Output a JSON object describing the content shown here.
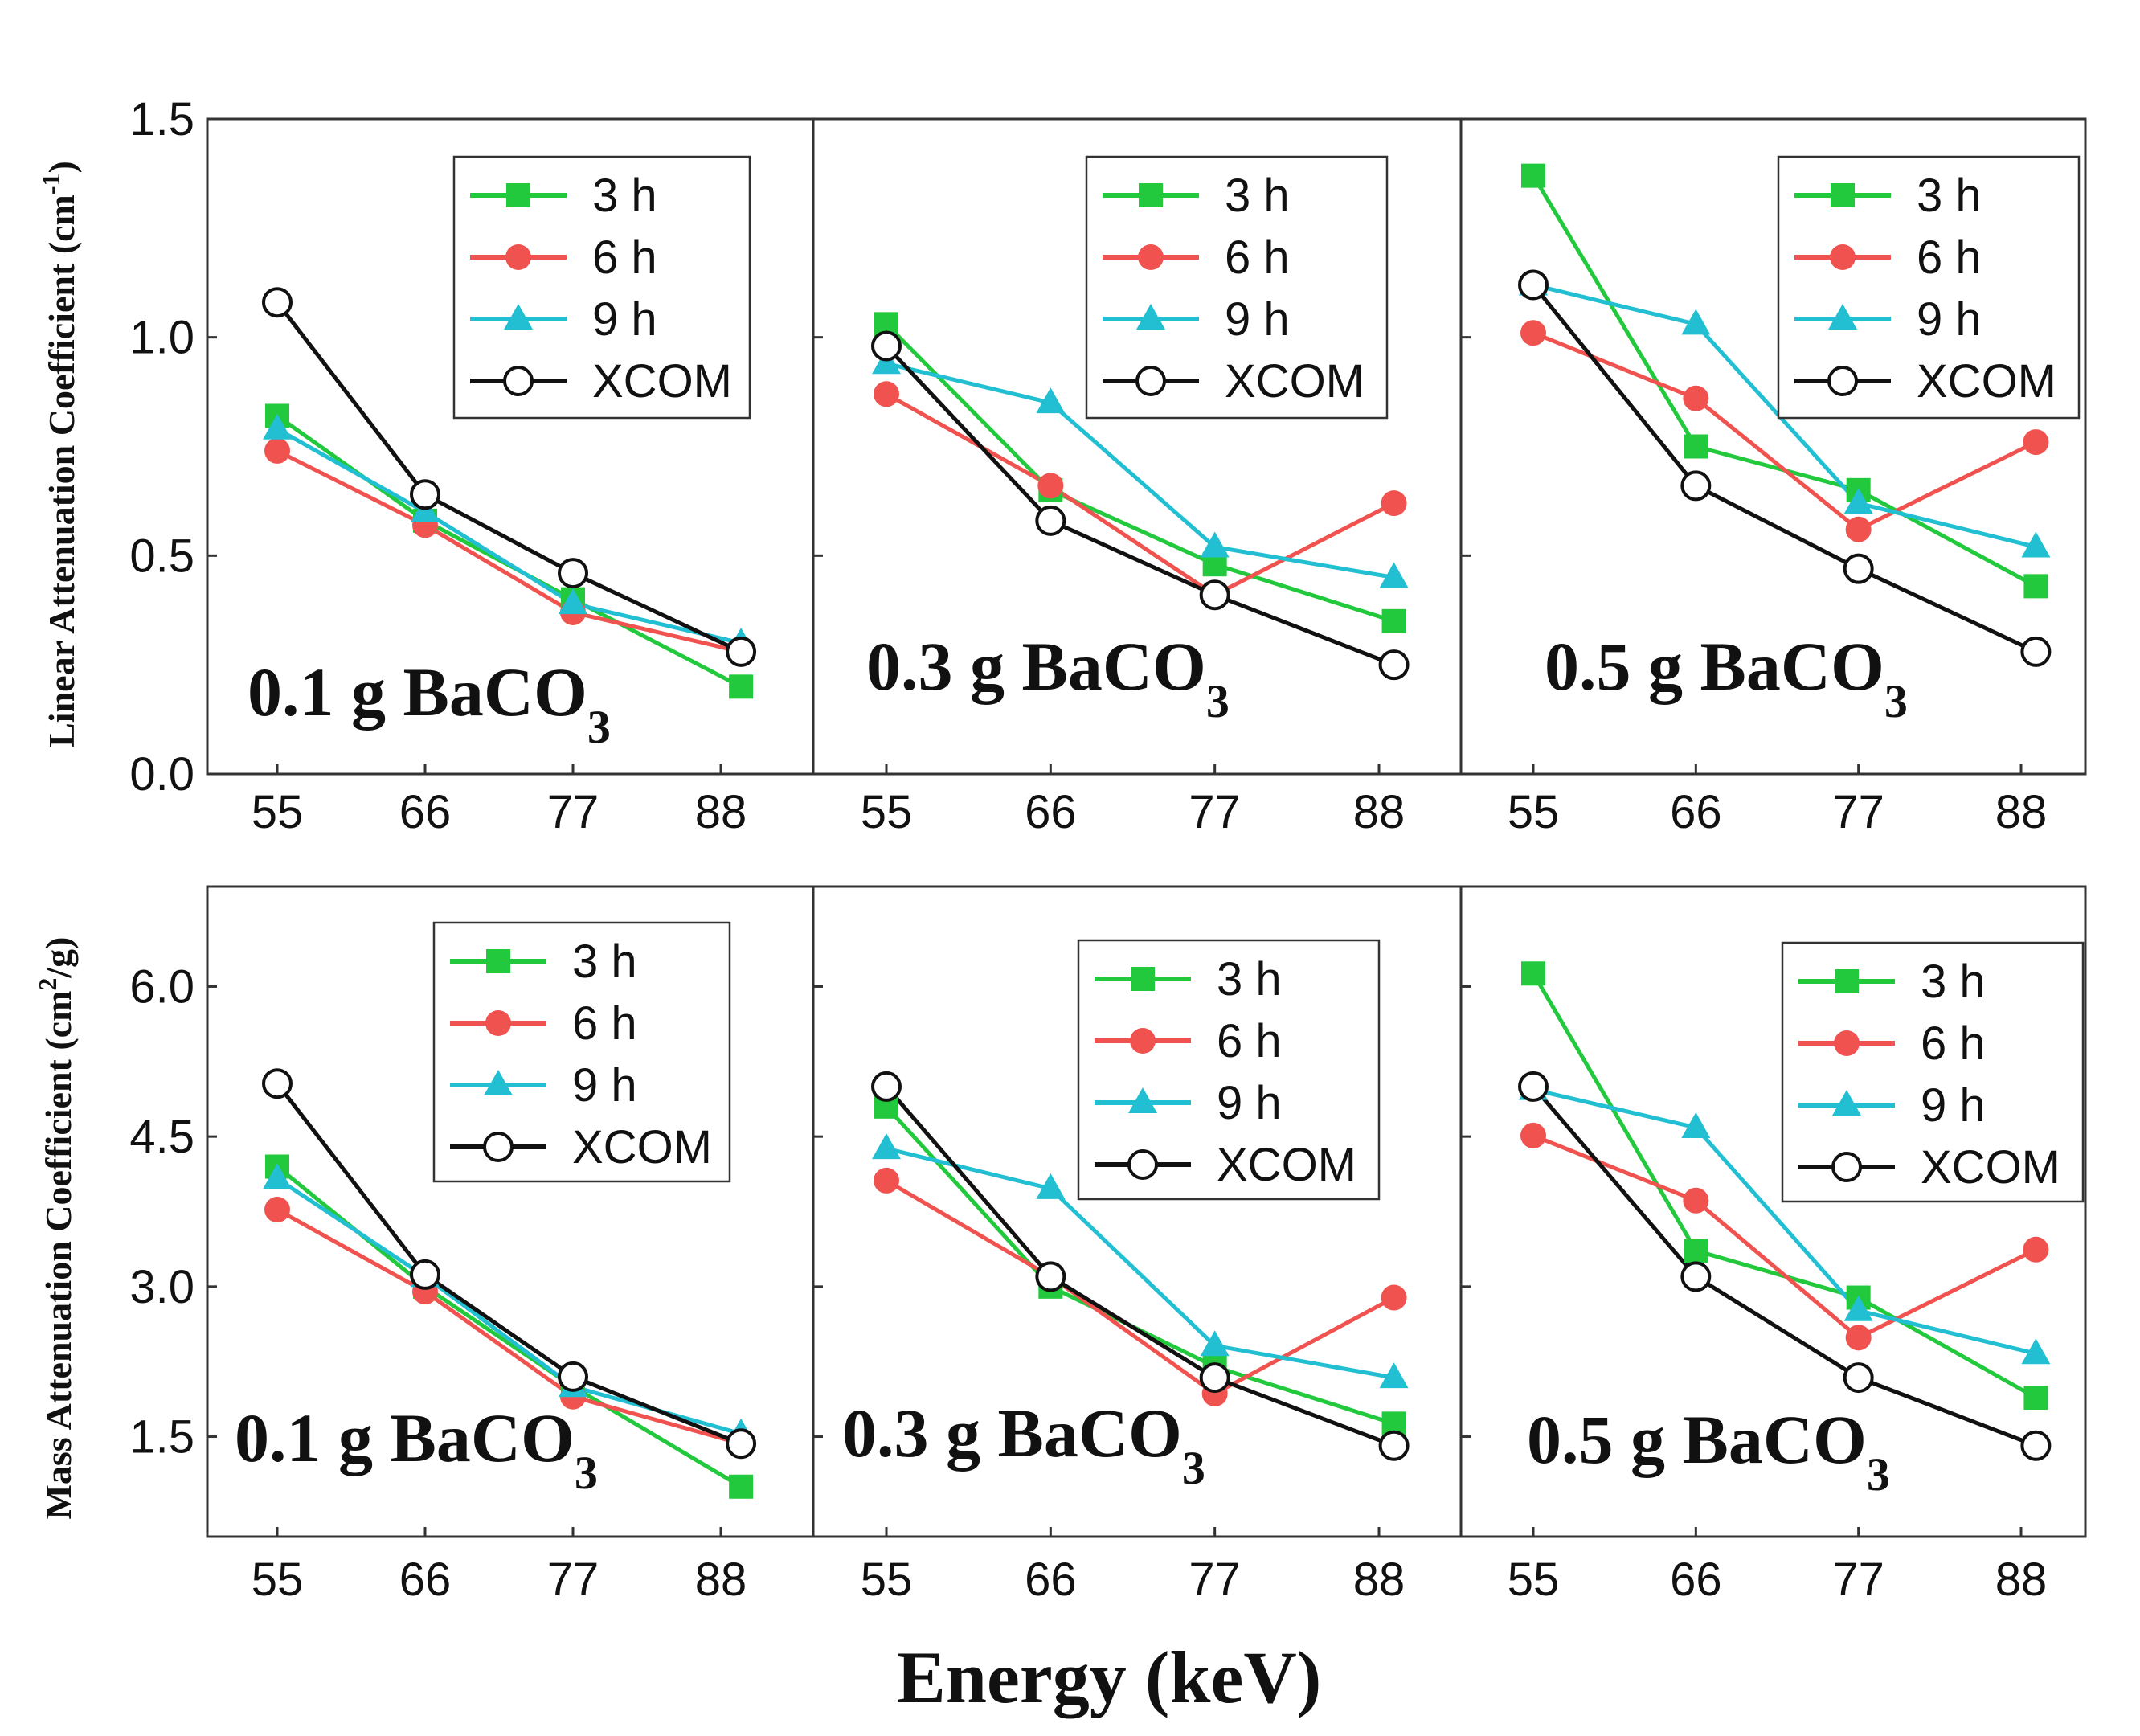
{
  "chart_data": {
    "type": "line",
    "xlabel": "Energy (keV)",
    "x_ticks": [
      "55",
      "66",
      "77",
      "88"
    ],
    "legend": [
      "3 h",
      "6 h",
      "9 h",
      "XCOM"
    ],
    "colors": {
      "3 h": "#22c93c",
      "6 h": "#f0534f",
      "9 h": "#22bfd3",
      "XCOM": "#111111"
    },
    "markers": {
      "3 h": "square",
      "6 h": "circle",
      "9 h": "triangle",
      "XCOM": "open-circle"
    },
    "rows": [
      {
        "ylabel_main": "Linear Attenuation Coefficient (cm",
        "ylabel_sup": "-1",
        "ylabel_end": ")",
        "ylim": [
          0,
          1.5
        ],
        "y_ticks": [
          "0.0",
          "0.5",
          "1.0",
          "1.5"
        ],
        "y_tick_values": [
          0,
          0.5,
          1.0,
          1.5
        ],
        "panels": [
          {
            "label_main": "0.1 g BaCO",
            "label_sub": "3",
            "series": [
              {
                "name": "3 h",
                "x": [
                  55,
                  66,
                  77,
                  89.5
                ],
                "y": [
                  0.82,
                  0.58,
                  0.4,
                  0.2
                ]
              },
              {
                "name": "6 h",
                "x": [
                  55,
                  66,
                  77,
                  89.5
                ],
                "y": [
                  0.74,
                  0.57,
                  0.37,
                  0.28
                ]
              },
              {
                "name": "9 h",
                "x": [
                  55,
                  66,
                  77,
                  89.5
                ],
                "y": [
                  0.79,
                  0.6,
                  0.39,
                  0.3
                ]
              },
              {
                "name": "XCOM",
                "x": [
                  55,
                  66,
                  77,
                  89.5
                ],
                "y": [
                  1.08,
                  0.64,
                  0.46,
                  0.28
                ]
              }
            ]
          },
          {
            "label_main": "0.3 g BaCO",
            "label_sub": "3",
            "series": [
              {
                "name": "3 h",
                "x": [
                  55,
                  66,
                  77,
                  89
                ],
                "y": [
                  1.03,
                  0.65,
                  0.48,
                  0.35
                ]
              },
              {
                "name": "6 h",
                "x": [
                  55,
                  66,
                  77,
                  89
                ],
                "y": [
                  0.87,
                  0.66,
                  0.41,
                  0.62
                ]
              },
              {
                "name": "9 h",
                "x": [
                  55,
                  66,
                  77,
                  89
                ],
                "y": [
                  0.94,
                  0.85,
                  0.52,
                  0.45
                ]
              },
              {
                "name": "XCOM",
                "x": [
                  55,
                  66,
                  77,
                  89
                ],
                "y": [
                  0.98,
                  0.58,
                  0.41,
                  0.25
                ]
              }
            ]
          },
          {
            "label_main": "0.5 g BaCO",
            "label_sub": "3",
            "series": [
              {
                "name": "3 h",
                "x": [
                  55,
                  66,
                  77,
                  89
                ],
                "y": [
                  1.37,
                  0.75,
                  0.65,
                  0.43
                ]
              },
              {
                "name": "6 h",
                "x": [
                  55,
                  66,
                  77,
                  89
                ],
                "y": [
                  1.01,
                  0.86,
                  0.56,
                  0.76
                ]
              },
              {
                "name": "9 h",
                "x": [
                  55,
                  66,
                  77,
                  89
                ],
                "y": [
                  1.12,
                  1.03,
                  0.62,
                  0.52
                ]
              },
              {
                "name": "XCOM",
                "x": [
                  55,
                  66,
                  77,
                  89
                ],
                "y": [
                  1.12,
                  0.66,
                  0.47,
                  0.28
                ]
              }
            ]
          }
        ]
      },
      {
        "ylabel_main": "Mass Attenuation Coefficient (cm",
        "ylabel_sup": "2",
        "ylabel_end": "/g)",
        "ylim": [
          0.5,
          7.0
        ],
        "y_ticks": [
          "1.5",
          "3.0",
          "4.5",
          "6.0"
        ],
        "y_tick_values": [
          1.5,
          3.0,
          4.5,
          6.0
        ],
        "panels": [
          {
            "label_main": "0.1 g BaCO",
            "label_sub": "3",
            "series": [
              {
                "name": "3 h",
                "x": [
                  55,
                  66,
                  77,
                  89.5
                ],
                "y": [
                  4.2,
                  3.0,
                  2.0,
                  1.0
                ]
              },
              {
                "name": "6 h",
                "x": [
                  55,
                  66,
                  77,
                  89.5
                ],
                "y": [
                  3.77,
                  2.95,
                  1.9,
                  1.43
                ]
              },
              {
                "name": "9 h",
                "x": [
                  55,
                  66,
                  77,
                  89.5
                ],
                "y": [
                  4.08,
                  3.1,
                  2.0,
                  1.53
                ]
              },
              {
                "name": "XCOM",
                "x": [
                  55,
                  66,
                  77,
                  89.5
                ],
                "y": [
                  5.03,
                  3.12,
                  2.1,
                  1.43
                ]
              }
            ]
          },
          {
            "label_main": "0.3 g BaCO",
            "label_sub": "3",
            "series": [
              {
                "name": "3 h",
                "x": [
                  55,
                  66,
                  77,
                  89
                ],
                "y": [
                  4.8,
                  3.0,
                  2.2,
                  1.63
                ]
              },
              {
                "name": "6 h",
                "x": [
                  55,
                  66,
                  77,
                  89
                ],
                "y": [
                  4.06,
                  3.1,
                  1.93,
                  2.89
                ]
              },
              {
                "name": "9 h",
                "x": [
                  55,
                  66,
                  77,
                  89
                ],
                "y": [
                  4.38,
                  3.98,
                  2.41,
                  2.09
                ]
              },
              {
                "name": "XCOM",
                "x": [
                  55,
                  66,
                  77,
                  89
                ],
                "y": [
                  5.0,
                  3.1,
                  2.09,
                  1.41
                ]
              }
            ]
          },
          {
            "label_main": "0.5 g BaCO",
            "label_sub": "3",
            "series": [
              {
                "name": "3 h",
                "x": [
                  55,
                  66,
                  77,
                  89
                ],
                "y": [
                  6.13,
                  3.36,
                  2.89,
                  1.89
                ]
              },
              {
                "name": "6 h",
                "x": [
                  55,
                  66,
                  77,
                  89
                ],
                "y": [
                  4.51,
                  3.86,
                  2.49,
                  3.37
                ]
              },
              {
                "name": "9 h",
                "x": [
                  55,
                  66,
                  77,
                  89
                ],
                "y": [
                  4.97,
                  4.59,
                  2.76,
                  2.33
                ]
              },
              {
                "name": "XCOM",
                "x": [
                  55,
                  66,
                  77,
                  89
                ],
                "y": [
                  5.0,
                  3.1,
                  2.09,
                  1.41
                ]
              }
            ]
          }
        ]
      }
    ]
  }
}
